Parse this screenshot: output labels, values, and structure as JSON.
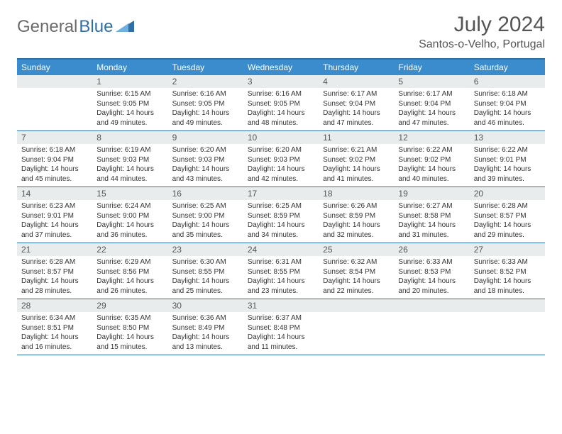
{
  "logo": {
    "text_gray": "General",
    "text_blue": "Blue"
  },
  "title": "July 2024",
  "location": "Santos-o-Velho, Portugal",
  "colors": {
    "header_bar": "#3b8ccc",
    "border": "#2f6fa8",
    "daynum_bg": "#e9eced",
    "text": "#333333",
    "title_text": "#555555"
  },
  "day_headers": [
    "Sunday",
    "Monday",
    "Tuesday",
    "Wednesday",
    "Thursday",
    "Friday",
    "Saturday"
  ],
  "weeks": [
    [
      {
        "n": "",
        "lines": []
      },
      {
        "n": "1",
        "lines": [
          "Sunrise: 6:15 AM",
          "Sunset: 9:05 PM",
          "Daylight: 14 hours",
          "and 49 minutes."
        ]
      },
      {
        "n": "2",
        "lines": [
          "Sunrise: 6:16 AM",
          "Sunset: 9:05 PM",
          "Daylight: 14 hours",
          "and 49 minutes."
        ]
      },
      {
        "n": "3",
        "lines": [
          "Sunrise: 6:16 AM",
          "Sunset: 9:05 PM",
          "Daylight: 14 hours",
          "and 48 minutes."
        ]
      },
      {
        "n": "4",
        "lines": [
          "Sunrise: 6:17 AM",
          "Sunset: 9:04 PM",
          "Daylight: 14 hours",
          "and 47 minutes."
        ]
      },
      {
        "n": "5",
        "lines": [
          "Sunrise: 6:17 AM",
          "Sunset: 9:04 PM",
          "Daylight: 14 hours",
          "and 47 minutes."
        ]
      },
      {
        "n": "6",
        "lines": [
          "Sunrise: 6:18 AM",
          "Sunset: 9:04 PM",
          "Daylight: 14 hours",
          "and 46 minutes."
        ]
      }
    ],
    [
      {
        "n": "7",
        "lines": [
          "Sunrise: 6:18 AM",
          "Sunset: 9:04 PM",
          "Daylight: 14 hours",
          "and 45 minutes."
        ]
      },
      {
        "n": "8",
        "lines": [
          "Sunrise: 6:19 AM",
          "Sunset: 9:03 PM",
          "Daylight: 14 hours",
          "and 44 minutes."
        ]
      },
      {
        "n": "9",
        "lines": [
          "Sunrise: 6:20 AM",
          "Sunset: 9:03 PM",
          "Daylight: 14 hours",
          "and 43 minutes."
        ]
      },
      {
        "n": "10",
        "lines": [
          "Sunrise: 6:20 AM",
          "Sunset: 9:03 PM",
          "Daylight: 14 hours",
          "and 42 minutes."
        ]
      },
      {
        "n": "11",
        "lines": [
          "Sunrise: 6:21 AM",
          "Sunset: 9:02 PM",
          "Daylight: 14 hours",
          "and 41 minutes."
        ]
      },
      {
        "n": "12",
        "lines": [
          "Sunrise: 6:22 AM",
          "Sunset: 9:02 PM",
          "Daylight: 14 hours",
          "and 40 minutes."
        ]
      },
      {
        "n": "13",
        "lines": [
          "Sunrise: 6:22 AM",
          "Sunset: 9:01 PM",
          "Daylight: 14 hours",
          "and 39 minutes."
        ]
      }
    ],
    [
      {
        "n": "14",
        "lines": [
          "Sunrise: 6:23 AM",
          "Sunset: 9:01 PM",
          "Daylight: 14 hours",
          "and 37 minutes."
        ]
      },
      {
        "n": "15",
        "lines": [
          "Sunrise: 6:24 AM",
          "Sunset: 9:00 PM",
          "Daylight: 14 hours",
          "and 36 minutes."
        ]
      },
      {
        "n": "16",
        "lines": [
          "Sunrise: 6:25 AM",
          "Sunset: 9:00 PM",
          "Daylight: 14 hours",
          "and 35 minutes."
        ]
      },
      {
        "n": "17",
        "lines": [
          "Sunrise: 6:25 AM",
          "Sunset: 8:59 PM",
          "Daylight: 14 hours",
          "and 34 minutes."
        ]
      },
      {
        "n": "18",
        "lines": [
          "Sunrise: 6:26 AM",
          "Sunset: 8:59 PM",
          "Daylight: 14 hours",
          "and 32 minutes."
        ]
      },
      {
        "n": "19",
        "lines": [
          "Sunrise: 6:27 AM",
          "Sunset: 8:58 PM",
          "Daylight: 14 hours",
          "and 31 minutes."
        ]
      },
      {
        "n": "20",
        "lines": [
          "Sunrise: 6:28 AM",
          "Sunset: 8:57 PM",
          "Daylight: 14 hours",
          "and 29 minutes."
        ]
      }
    ],
    [
      {
        "n": "21",
        "lines": [
          "Sunrise: 6:28 AM",
          "Sunset: 8:57 PM",
          "Daylight: 14 hours",
          "and 28 minutes."
        ]
      },
      {
        "n": "22",
        "lines": [
          "Sunrise: 6:29 AM",
          "Sunset: 8:56 PM",
          "Daylight: 14 hours",
          "and 26 minutes."
        ]
      },
      {
        "n": "23",
        "lines": [
          "Sunrise: 6:30 AM",
          "Sunset: 8:55 PM",
          "Daylight: 14 hours",
          "and 25 minutes."
        ]
      },
      {
        "n": "24",
        "lines": [
          "Sunrise: 6:31 AM",
          "Sunset: 8:55 PM",
          "Daylight: 14 hours",
          "and 23 minutes."
        ]
      },
      {
        "n": "25",
        "lines": [
          "Sunrise: 6:32 AM",
          "Sunset: 8:54 PM",
          "Daylight: 14 hours",
          "and 22 minutes."
        ]
      },
      {
        "n": "26",
        "lines": [
          "Sunrise: 6:33 AM",
          "Sunset: 8:53 PM",
          "Daylight: 14 hours",
          "and 20 minutes."
        ]
      },
      {
        "n": "27",
        "lines": [
          "Sunrise: 6:33 AM",
          "Sunset: 8:52 PM",
          "Daylight: 14 hours",
          "and 18 minutes."
        ]
      }
    ],
    [
      {
        "n": "28",
        "lines": [
          "Sunrise: 6:34 AM",
          "Sunset: 8:51 PM",
          "Daylight: 14 hours",
          "and 16 minutes."
        ]
      },
      {
        "n": "29",
        "lines": [
          "Sunrise: 6:35 AM",
          "Sunset: 8:50 PM",
          "Daylight: 14 hours",
          "and 15 minutes."
        ]
      },
      {
        "n": "30",
        "lines": [
          "Sunrise: 6:36 AM",
          "Sunset: 8:49 PM",
          "Daylight: 14 hours",
          "and 13 minutes."
        ]
      },
      {
        "n": "31",
        "lines": [
          "Sunrise: 6:37 AM",
          "Sunset: 8:48 PM",
          "Daylight: 14 hours",
          "and 11 minutes."
        ]
      },
      {
        "n": "",
        "lines": []
      },
      {
        "n": "",
        "lines": []
      },
      {
        "n": "",
        "lines": []
      }
    ]
  ]
}
